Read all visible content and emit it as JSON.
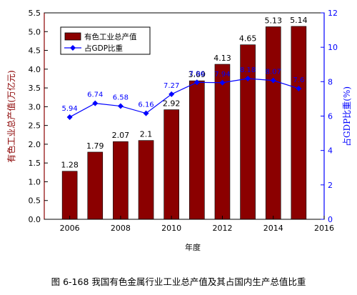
{
  "chart_data": {
    "type": "bar+line",
    "x": [
      2006,
      2007,
      2008,
      2009,
      2010,
      2011,
      2012,
      2013,
      2014,
      2015
    ],
    "series": [
      {
        "name": "有色工业总产值",
        "type": "bar",
        "axis": "left",
        "color": "#8b0000",
        "values": [
          1.28,
          1.79,
          2.07,
          2.1,
          2.92,
          3.69,
          4.13,
          4.65,
          5.13,
          5.14
        ],
        "labels": [
          "1.28",
          "1.79",
          "2.07",
          "2.1",
          "2.92",
          "3.69",
          "4.13",
          "4.65",
          "5.13",
          "5.14"
        ]
      },
      {
        "name": "占GDP比重",
        "type": "line",
        "axis": "right",
        "color": "#0000ff",
        "values": [
          5.94,
          6.74,
          6.58,
          6.16,
          7.27,
          7.96,
          7.94,
          8.18,
          8.07,
          7.6
        ],
        "labels": [
          "5.94",
          "6.74",
          "6.58",
          "6.16",
          "7.27",
          "7.96",
          "7.94",
          "8.18",
          "8.07",
          "7.6"
        ]
      }
    ],
    "xlabel": "年度",
    "ylabel_left": "有色工业总产值(万亿元)",
    "ylabel_right": "占GDP比重(%)",
    "xlim": [
      2005,
      2016
    ],
    "ylim_left": [
      0,
      5.5
    ],
    "ylim_right": [
      0,
      12
    ],
    "xticks": [
      "2006",
      "2008",
      "2010",
      "2012",
      "2014",
      "2016"
    ],
    "yticks_left": [
      "0.0",
      "0.5",
      "1.0",
      "1.5",
      "2.0",
      "2.5",
      "3.0",
      "3.5",
      "4.0",
      "4.5",
      "5.0",
      "5.5"
    ],
    "yticks_right": [
      "0",
      "2",
      "4",
      "6",
      "8",
      "10",
      "12"
    ],
    "legend_position": "top-left",
    "grid": false,
    "axis_color_left": "#8b0000",
    "axis_color_right": "#0000ff"
  },
  "caption": "图 6-168  我国有色金属行业工业总产值及其占国内生产总值比重"
}
